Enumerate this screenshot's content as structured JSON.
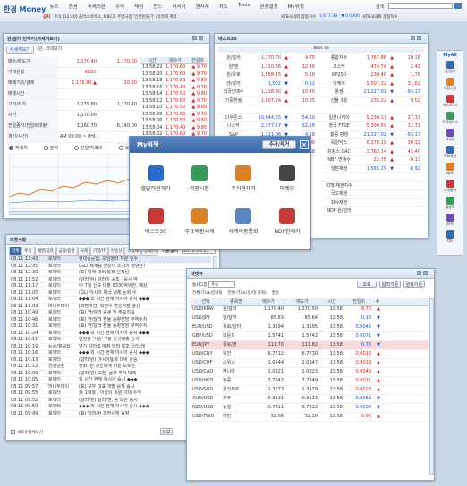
{
  "app": {
    "logo": "한경 Money"
  },
  "menu": [
    "뉴스",
    "증권",
    "국제외환",
    "주식",
    "채권",
    "펀드",
    "리서치",
    "원자재",
    "차트",
    "Tools",
    "환경설정",
    "My위젯"
  ],
  "menu_search": "검색",
  "ticker": {
    "label": "공지",
    "text": "주식 [12:40] 플러스바이오, MBC와 주말극장 '인연만들기' 25억에 계약",
    "idx1": "KTB국내외 종합지수",
    "v1": "1,617.39",
    "c1": "▼ 0.5000",
    "idx2": "KTB국내외 종합지수"
  },
  "fx_window": {
    "title": "원/달러 현재가(자세히보기)",
    "tabs": [
      "자세히보기",
      "단, 최대보기"
    ],
    "rows": [
      [
        "매수/매도가",
        "1,170.40",
        "1,170.60"
      ],
      [
        "거래은행",
        "KEBC",
        ""
      ],
      [
        "매매기준/결제",
        "1,179.80 ▲",
        "10.30"
      ],
      [
        "매매시간",
        "",
        ""
      ],
      [
        "고가/저가",
        "1,179.80",
        "1,170.40"
      ],
      [
        "시가",
        "1,170.00",
        ""
      ],
      [
        "전일종가/전일비대량",
        "1,160.70",
        "6,140.00"
      ],
      [
        "갱신(시간)",
        "AM 09:00 ~ PHI 3:00",
        ""
      ]
    ],
    "time_rows": [
      [
        "13:58:22",
        "1,170.60",
        "▲ 9.70"
      ],
      [
        "13:58:20",
        "1,170.60",
        "▲ 9.70"
      ],
      [
        "13:58:18",
        "1,170.50",
        "▲ 9.80"
      ],
      [
        "13:58:16",
        "1,170.40",
        "▲ 9.70"
      ],
      [
        "13:58:14",
        "1,170.50",
        "▲ 9.80"
      ],
      [
        "13:58:12",
        "1,170.60",
        "▲ 9.70"
      ],
      [
        "13:58:10",
        "1,170.50",
        "▲ 9.80"
      ],
      [
        "13:58:08",
        "1,170.60",
        "▲ 9.70"
      ],
      [
        "13:58:06",
        "1,170.50",
        "▲ 9.80"
      ],
      [
        "13:58:04",
        "1,170.40",
        "▲ 9.80"
      ],
      [
        "13:58:02",
        "1,170.60",
        "▲ 9.70"
      ],
      [
        "13:58:00",
        "1,170.50",
        "▲ 9.70"
      ]
    ],
    "time_head": [
      "시간",
      "매수가",
      "전일비"
    ],
    "radios": [
      "자세히",
      "분석",
      "전일/지표비",
      "오늘"
    ]
  },
  "best_window": {
    "title": "베스트30",
    "sub": "Best 30",
    "left": [
      [
        "원/달러",
        "1,170.70",
        "▲",
        "9.70"
      ],
      [
        "원/엔",
        "1,310.36",
        "▲",
        "12.46"
      ],
      [
        "원/유로",
        "1,558.45",
        "▲",
        "5.20"
      ],
      [
        "엔/달러",
        "1,002",
        "▼",
        "0.32"
      ],
      [
        "외국인매수",
        "1,218.90",
        "▲",
        "10.40"
      ],
      [
        "가중환율",
        "1,607.24",
        "▲",
        "10.25"
      ],
      [
        "",
        "",
        "",
        ""
      ],
      [
        "다우존스",
        "10,644.25",
        "▼",
        "54.10"
      ],
      [
        "나스닥",
        "2,277.17",
        "▼",
        "-32.18"
      ],
      [
        "S&P",
        "1,121.06",
        "▼",
        "4.18"
      ],
      [
        "금(영국)",
        "1,185.10",
        "▲",
        "1.00"
      ],
      [
        "WTI(서부)",
        "81.24",
        "▼",
        "-0.88"
      ]
    ],
    "right": [
      [
        "종합지수",
        "1,767.86",
        "▲",
        "10.16"
      ],
      [
        "코스닥",
        "474.74",
        "▲",
        "2.42"
      ],
      [
        "KP200",
        "230.46",
        "▲",
        "1.78"
      ],
      [
        "닛케이",
        "9,507.32",
        "▲",
        "31.62"
      ],
      [
        "항셍",
        "21,227.02",
        "▼",
        "-93.17"
      ],
      [
        "선물 3월",
        "235.22",
        "▲",
        "0.52"
      ],
      [
        "",
        "",
        "",
        ""
      ],
      [
        "일본니케이",
        "9,230.17",
        "▲",
        "27.37"
      ],
      [
        "영국 FTSE",
        "5,300.59",
        "▲",
        "12.71"
      ],
      [
        "홍콩 항셍",
        "21,227.02",
        "▼",
        "-93.17"
      ],
      [
        "독일닥스",
        "6,278.19",
        "▲",
        "36.32"
      ],
      [
        "프랑스 CAC",
        "3,762.14",
        "▲",
        "45.40"
      ],
      [
        "NBF 연계수",
        "22.75",
        "▲",
        "-0.13"
      ],
      [
        "일본채권",
        "1,565.29",
        "▼",
        "-6.92"
      ],
      [
        "",
        "",
        "",
        ""
      ],
      [
        "KTB 채권지수",
        "",
        "",
        ""
      ],
      [
        "국고채권",
        "",
        "",
        ""
      ],
      [
        "회사채권",
        "",
        "",
        ""
      ],
      [
        "NDF 원/달러",
        "",
        "",
        ""
      ]
    ]
  },
  "mywidget": {
    "title": "My위젯",
    "add": "추가/제거",
    "items": [
      "월달러현재가",
      "외환시황",
      "주식현재가",
      "마켓뷰",
      "베스트30",
      "주요외환시세",
      "세계이중통화",
      "NDF현재가"
    ]
  },
  "news_window": {
    "title": "외환시황",
    "tabs": [
      "전체",
      "주식",
      "채권/금리",
      "금융/증권",
      "국제",
      "기업/IT",
      "부동산",
      "기업체",
      "경제관심",
      "사회/경제",
      "전체기사"
    ],
    "date_label": "기준일자",
    "date": "2010.08.11",
    "rows": [
      [
        "08.11 13:43",
        "로이터",
        "현대중공업, 오일뱅크 지분 인수"
      ],
      [
        "08.11 12:35",
        "로이터",
        "(GL) 세계증 연준이 조치의 영향은?"
      ],
      [
        "08.11 12:30",
        "로이터",
        "(표) 달러 대비 통화 움직임"
      ],
      [
        "08.11 11:52",
        "로이터",
        "(달러/원) 달러이 공조 · 중시 약"
      ],
      [
        "08.11 11:17",
        "로이터",
        "中 7월 신규 대출 5330억위안, 예상"
      ],
      [
        "08.11 11:05",
        "로이터",
        "(GL) 아시아 미국 경제 둔화 우"
      ],
      [
        "08.11 11:04",
        "로이터",
        "◆◆◆ 외 시간 현재 아시아 증시 ◆◆◆"
      ],
      [
        "08.11 11:03",
        "머니투데이",
        "[외환마감] 외환이 연중저점 경신"
      ],
      [
        "08.11 10:49",
        "로이터",
        "(표) 엔/달러 중세 및 주요지표"
      ],
      [
        "08.11 10:46",
        "로이터",
        "(표) 엔/달러 환율 동향전망 무역수지"
      ],
      [
        "08.11 10:31",
        "로이터",
        "(표) 엔/달러 환율 동향전망 무역수지"
      ],
      [
        "08.11 10:24",
        "로이터",
        "◆◆◆ 외 시간 현재 아시아 증시 ◆◆◆"
      ],
      [
        "08.11 10:11",
        "로이터",
        "인천항 '시즌' 7월 신규대출 증가"
      ],
      [
        "08.11 10:19",
        "뉴욕/홍콩외",
        "연기 달러로 예정 달러 보조 스티 테"
      ],
      [
        "08.11 10:16",
        "로이터",
        "◆◆◆ 외 시간 현재 아시아 증시 ◆◆◆"
      ],
      [
        "08.11 10:13",
        "로이터",
        "(달러/원) 아시아통화 대비 상승"
      ],
      [
        "08.11 10:12",
        "한경닷컴",
        "한화, 원 강진희에 회원 오르는"
      ],
      [
        "08.11 10:09",
        "로이터",
        "(달러/원) 오전 ·글로 주식 대체"
      ],
      [
        "08.11 10:05",
        "로이터",
        "외 시간 현재 아시아 증시 ◆◆◆"
      ],
      [
        "08.11 09:57",
        "머니투데이",
        "(표) 모투 대표 개별 중계 증시"
      ],
      [
        "08.11 09:55",
        "로이터",
        "外 1개월 / 이상의 회원 기대 수익"
      ],
      [
        "08.11 09:52",
        "로이터",
        "(달러/원) 달러/엔, 중 모든 증시"
      ],
      [
        "08.11 09:50",
        "로이터",
        "◆◆◆ 외 시간 현재 아시아 증시 ◆◆◆"
      ],
      [
        "08.11 09:49",
        "로이터",
        "(표) 달러/원 외환시장 동향"
      ]
    ],
    "checkbox": "새로운창에보기",
    "more_btn": "더보"
  },
  "market_window": {
    "title": "마켓뷰",
    "filter_label": "통화그룹",
    "filter": "주요",
    "btns": [
      "조회",
      "달러기준",
      "원화기준"
    ],
    "radios": [
      "전체 (Tick/분/대)",
      "전체 (Tick/분/대 하위)"
    ],
    "radio3": "영일",
    "head": [
      "선택",
      "종목명",
      "매수가",
      "매도가",
      "시간",
      "전일비",
      "#"
    ],
    "rows": [
      [
        "USD/KRW",
        "원/달러",
        "1,170.40",
        "1,170.50",
        "13:58",
        "9.70",
        "▲"
      ],
      [
        "USD/JPY",
        "엔/달러",
        "85.63",
        "85.64",
        "13:58",
        "0.13",
        "▼"
      ],
      [
        "EUR/USD",
        "유로/달러",
        "1.3194",
        "1.3195",
        "13:58",
        "0.0042",
        "▼"
      ],
      [
        "GBP/USD",
        "파운드",
        "1.5741",
        "1.5742",
        "13:58",
        "0.0071",
        "▼"
      ],
      [
        "EUR/JPY",
        "유로/엔",
        "111.70",
        "111.82",
        "13:58",
        "0.76",
        "▼"
      ],
      [
        "USD/CNY",
        "위안",
        "6.7712",
        "6.7730",
        "13:58",
        "0.0016",
        "▲"
      ],
      [
        "USD/CHF",
        "스위스",
        "1.0544",
        "1.0547",
        "13:58",
        "0.0013",
        "▲"
      ],
      [
        "USD/CAD",
        "캐나다",
        "1.0321",
        "1.0323",
        "13:58",
        "0.0040",
        "▲"
      ],
      [
        "USD/HKD",
        "홍콩",
        "7.7642",
        "7.7649",
        "13:58",
        "0.0011",
        "▲"
      ],
      [
        "USD/SGD",
        "싱가포르",
        "1.3577",
        "1.3579",
        "13:58",
        "0.0023",
        "▲"
      ],
      [
        "AUD/USD",
        "호주",
        "0.9121",
        "0.9123",
        "13:58",
        "0.0052",
        "▼"
      ],
      [
        "NZD/USD",
        "뉴질",
        "0.7311",
        "0.7313",
        "13:58",
        "0.0034",
        "▼"
      ],
      [
        "USD/TWD",
        "대만",
        "32.08",
        "32.10",
        "13:58",
        "0.06",
        "▲"
      ]
    ]
  },
  "right_bar": {
    "label": "MyAll",
    "items": [
      "원/달러",
      "외환시황",
      "베스트30",
      "주식현재가",
      "마켓뷰",
      "주요외환",
      "NDF",
      "세계통화",
      "월달러",
      "KTB",
      "차트"
    ]
  },
  "colors": {
    "up": "#d21d1d",
    "down": "#1c4fd0",
    "header": "#3f6fb3"
  }
}
